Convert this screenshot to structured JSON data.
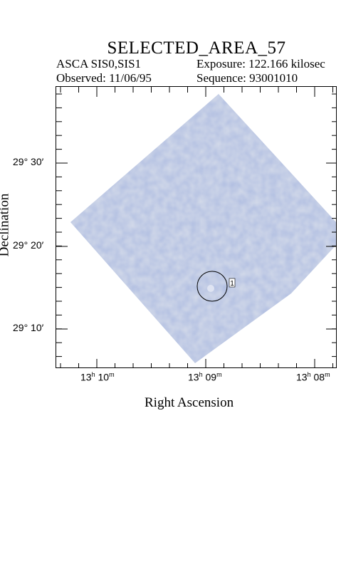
{
  "header": {
    "title": "SELECTED_AREA_57",
    "instrument": "ASCA SIS0,SIS1",
    "exposure": "Exposure: 122.166 kilosec",
    "observed": "Observed: 11/06/95",
    "sequence": "Sequence: 93001010"
  },
  "axes": {
    "x_title": "Right Ascension",
    "y_title": "Declination",
    "x_ticks": [
      {
        "h": "13",
        "m": "10"
      },
      {
        "h": "13",
        "m": "09"
      },
      {
        "h": "13",
        "m": "08"
      }
    ],
    "y_ticks": [
      "29° 30′",
      "29° 20′",
      "29° 10′"
    ]
  },
  "image": {
    "fill_color": "#b3c0e2",
    "source_marker_label": "1"
  }
}
